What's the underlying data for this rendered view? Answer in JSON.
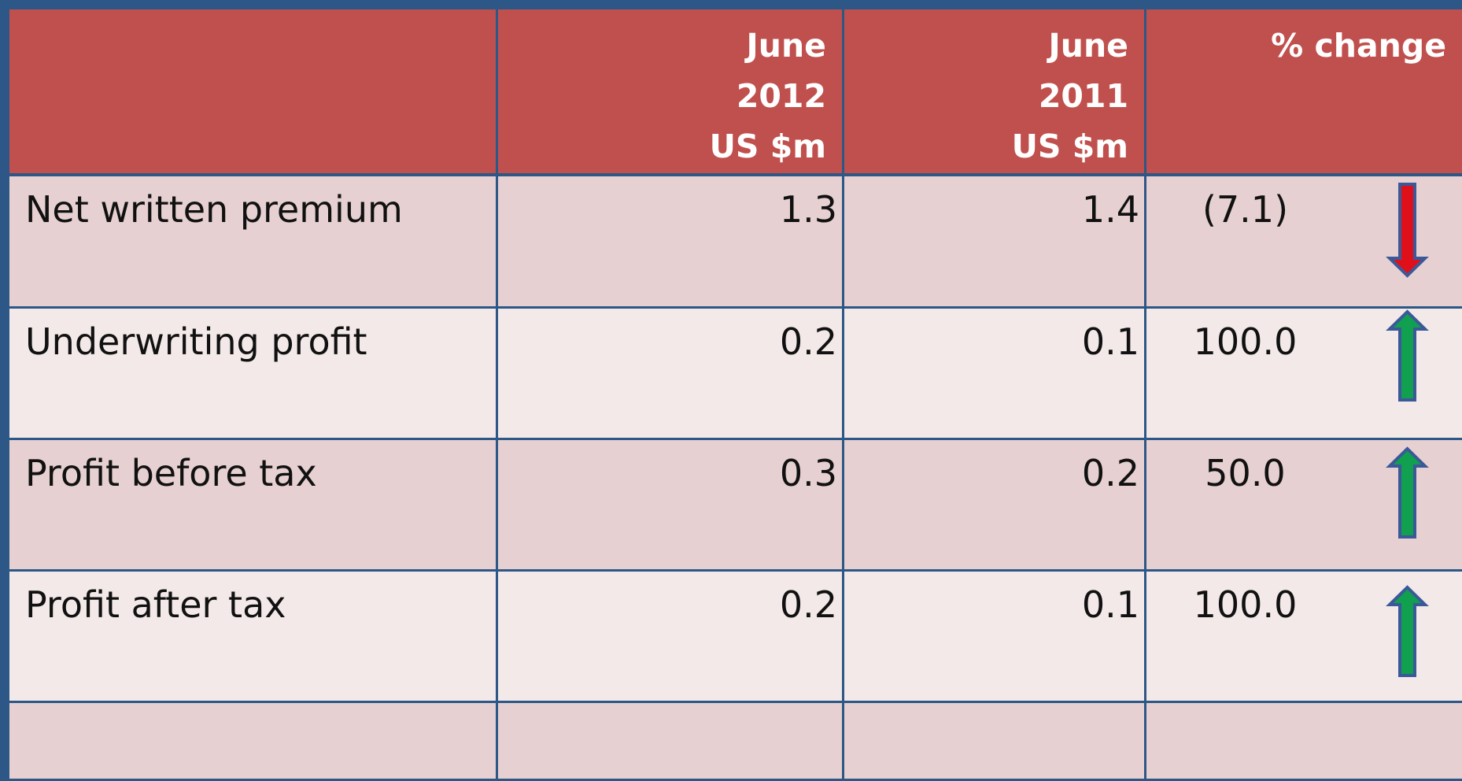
{
  "table": {
    "header": [
      [],
      [
        "June",
        "2012",
        "US $m"
      ],
      [
        "June",
        "2011",
        "US $m"
      ],
      [
        "% change"
      ]
    ],
    "rows": [
      [
        "Net written premium",
        "1.3",
        "1.4",
        "(7.1)"
      ],
      [
        "Underwriting profit",
        "0.2",
        "0.1",
        "100.0"
      ],
      [
        "Profit before tax",
        "0.3",
        "0.2",
        "50.0"
      ],
      [
        "Profit after tax",
        "0.2",
        "0.1",
        "100.0"
      ]
    ]
  }
}
